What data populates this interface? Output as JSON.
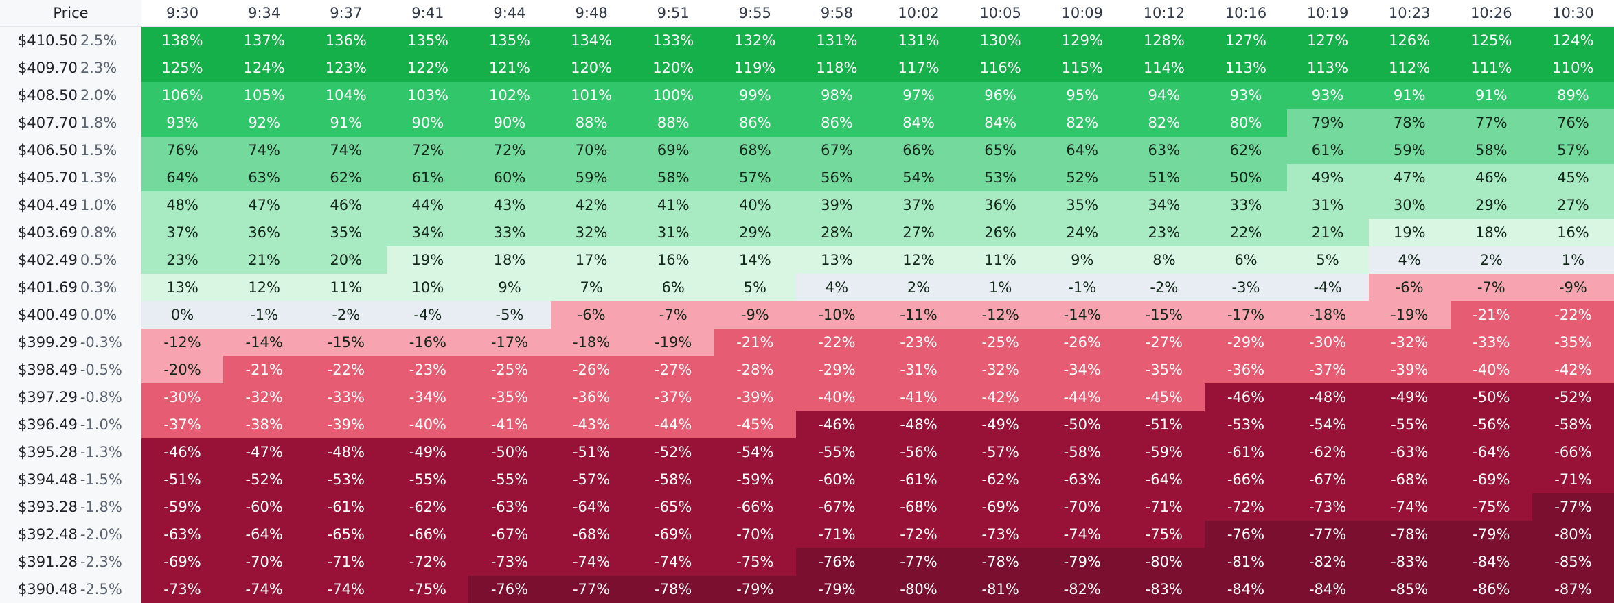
{
  "chart_data": {
    "type": "heatmap",
    "corner_label": "Price",
    "columns": [
      "9:30",
      "9:34",
      "9:37",
      "9:41",
      "9:44",
      "9:48",
      "9:51",
      "9:55",
      "9:58",
      "10:02",
      "10:05",
      "10:09",
      "10:12",
      "10:16",
      "10:19",
      "10:23",
      "10:26",
      "10:30"
    ],
    "rows": [
      {
        "price": "$410.50",
        "change": "2.5%",
        "values": [
          138,
          137,
          136,
          135,
          135,
          134,
          133,
          132,
          131,
          131,
          130,
          129,
          128,
          127,
          127,
          126,
          125,
          124
        ]
      },
      {
        "price": "$409.70",
        "change": "2.3%",
        "values": [
          125,
          124,
          123,
          122,
          121,
          120,
          120,
          119,
          118,
          117,
          116,
          115,
          114,
          113,
          113,
          112,
          111,
          110
        ]
      },
      {
        "price": "$408.50",
        "change": "2.0%",
        "values": [
          106,
          105,
          104,
          103,
          102,
          101,
          100,
          99,
          98,
          97,
          96,
          95,
          94,
          93,
          93,
          91,
          91,
          89
        ]
      },
      {
        "price": "$407.70",
        "change": "1.8%",
        "values": [
          93,
          92,
          91,
          90,
          90,
          88,
          88,
          86,
          86,
          84,
          84,
          82,
          82,
          80,
          79,
          78,
          77,
          76
        ]
      },
      {
        "price": "$406.50",
        "change": "1.5%",
        "values": [
          76,
          74,
          74,
          72,
          72,
          70,
          69,
          68,
          67,
          66,
          65,
          64,
          63,
          62,
          61,
          59,
          58,
          57
        ]
      },
      {
        "price": "$405.70",
        "change": "1.3%",
        "values": [
          64,
          63,
          62,
          61,
          60,
          59,
          58,
          57,
          56,
          54,
          53,
          52,
          51,
          50,
          49,
          47,
          46,
          45
        ]
      },
      {
        "price": "$404.49",
        "change": "1.0%",
        "values": [
          48,
          47,
          46,
          44,
          43,
          42,
          41,
          40,
          39,
          37,
          36,
          35,
          34,
          33,
          31,
          30,
          29,
          27
        ]
      },
      {
        "price": "$403.69",
        "change": "0.8%",
        "values": [
          37,
          36,
          35,
          34,
          33,
          32,
          31,
          29,
          28,
          27,
          26,
          24,
          23,
          22,
          21,
          19,
          18,
          16
        ]
      },
      {
        "price": "$402.49",
        "change": "0.5%",
        "values": [
          23,
          21,
          20,
          19,
          18,
          17,
          16,
          14,
          13,
          12,
          11,
          9,
          8,
          6,
          5,
          4,
          2,
          1
        ]
      },
      {
        "price": "$401.69",
        "change": "0.3%",
        "values": [
          13,
          12,
          11,
          10,
          9,
          7,
          6,
          5,
          4,
          2,
          1,
          -1,
          -2,
          -3,
          -4,
          -6,
          -7,
          -9
        ]
      },
      {
        "price": "$400.49",
        "change": "0.0%",
        "values": [
          0,
          -1,
          -2,
          -4,
          -5,
          -6,
          -7,
          -9,
          -10,
          -11,
          -12,
          -14,
          -15,
          -17,
          -18,
          -19,
          -21,
          -22
        ]
      },
      {
        "price": "$399.29",
        "change": "-0.3%",
        "values": [
          -12,
          -14,
          -15,
          -16,
          -17,
          -18,
          -19,
          -21,
          -22,
          -23,
          -25,
          -26,
          -27,
          -29,
          -30,
          -32,
          -33,
          -35
        ]
      },
      {
        "price": "$398.49",
        "change": "-0.5%",
        "values": [
          -20,
          -21,
          -22,
          -23,
          -25,
          -26,
          -27,
          -28,
          -29,
          -31,
          -32,
          -34,
          -35,
          -36,
          -37,
          -39,
          -40,
          -42
        ]
      },
      {
        "price": "$397.29",
        "change": "-0.8%",
        "values": [
          -30,
          -32,
          -33,
          -34,
          -35,
          -36,
          -37,
          -39,
          -40,
          -41,
          -42,
          -44,
          -45,
          -46,
          -48,
          -49,
          -50,
          -52
        ]
      },
      {
        "price": "$396.49",
        "change": "-1.0%",
        "values": [
          -37,
          -38,
          -39,
          -40,
          -41,
          -43,
          -44,
          -45,
          -46,
          -48,
          -49,
          -50,
          -51,
          -53,
          -54,
          -55,
          -56,
          -58
        ]
      },
      {
        "price": "$395.28",
        "change": "-1.3%",
        "values": [
          -46,
          -47,
          -48,
          -49,
          -50,
          -51,
          -52,
          -54,
          -55,
          -56,
          -57,
          -58,
          -59,
          -61,
          -62,
          -63,
          -64,
          -66
        ]
      },
      {
        "price": "$394.48",
        "change": "-1.5%",
        "values": [
          -51,
          -52,
          -53,
          -55,
          -55,
          -57,
          -58,
          -59,
          -60,
          -61,
          -62,
          -63,
          -64,
          -66,
          -67,
          -68,
          -69,
          -71
        ]
      },
      {
        "price": "$393.28",
        "change": "-1.8%",
        "values": [
          -59,
          -60,
          -61,
          -62,
          -63,
          -64,
          -65,
          -66,
          -67,
          -68,
          -69,
          -70,
          -71,
          -72,
          -73,
          -74,
          -75,
          -77
        ]
      },
      {
        "price": "$392.48",
        "change": "-2.0%",
        "values": [
          -63,
          -64,
          -65,
          -66,
          -67,
          -68,
          -69,
          -70,
          -71,
          -72,
          -73,
          -74,
          -75,
          -76,
          -77,
          -78,
          -79,
          -80
        ]
      },
      {
        "price": "$391.28",
        "change": "-2.3%",
        "values": [
          -69,
          -70,
          -71,
          -72,
          -73,
          -74,
          -74,
          -75,
          -76,
          -77,
          -78,
          -79,
          -80,
          -81,
          -82,
          -83,
          -84,
          -85
        ]
      },
      {
        "price": "$390.48",
        "change": "-2.5%",
        "values": [
          -73,
          -74,
          -74,
          -75,
          -76,
          -77,
          -78,
          -79,
          -79,
          -80,
          -81,
          -82,
          -83,
          -84,
          -84,
          -85,
          -86,
          -87
        ]
      }
    ],
    "value_suffix": "%",
    "color_scale": [
      {
        "min": 110,
        "bg": "#16b04a",
        "fg": "#ffffff"
      },
      {
        "min": 80,
        "bg": "#31c66a",
        "fg": "#ffffff"
      },
      {
        "min": 50,
        "bg": "#74d99c",
        "fg": "#14271b"
      },
      {
        "min": 20,
        "bg": "#a8ebc3",
        "fg": "#14271b"
      },
      {
        "min": 5,
        "bg": "#d9f6e3",
        "fg": "#14271b"
      },
      {
        "min": -5,
        "bg": "#e8edf4",
        "fg": "#14271b"
      },
      {
        "min": -20,
        "bg": "#f8a3b0",
        "fg": "#14271b"
      },
      {
        "min": -45,
        "bg": "#e65c73",
        "fg": "#ffffff"
      },
      {
        "min": -75,
        "bg": "#971236",
        "fg": "#ffffff"
      },
      {
        "min": -1000,
        "bg": "#7a0f30",
        "fg": "#ffffff"
      }
    ]
  }
}
